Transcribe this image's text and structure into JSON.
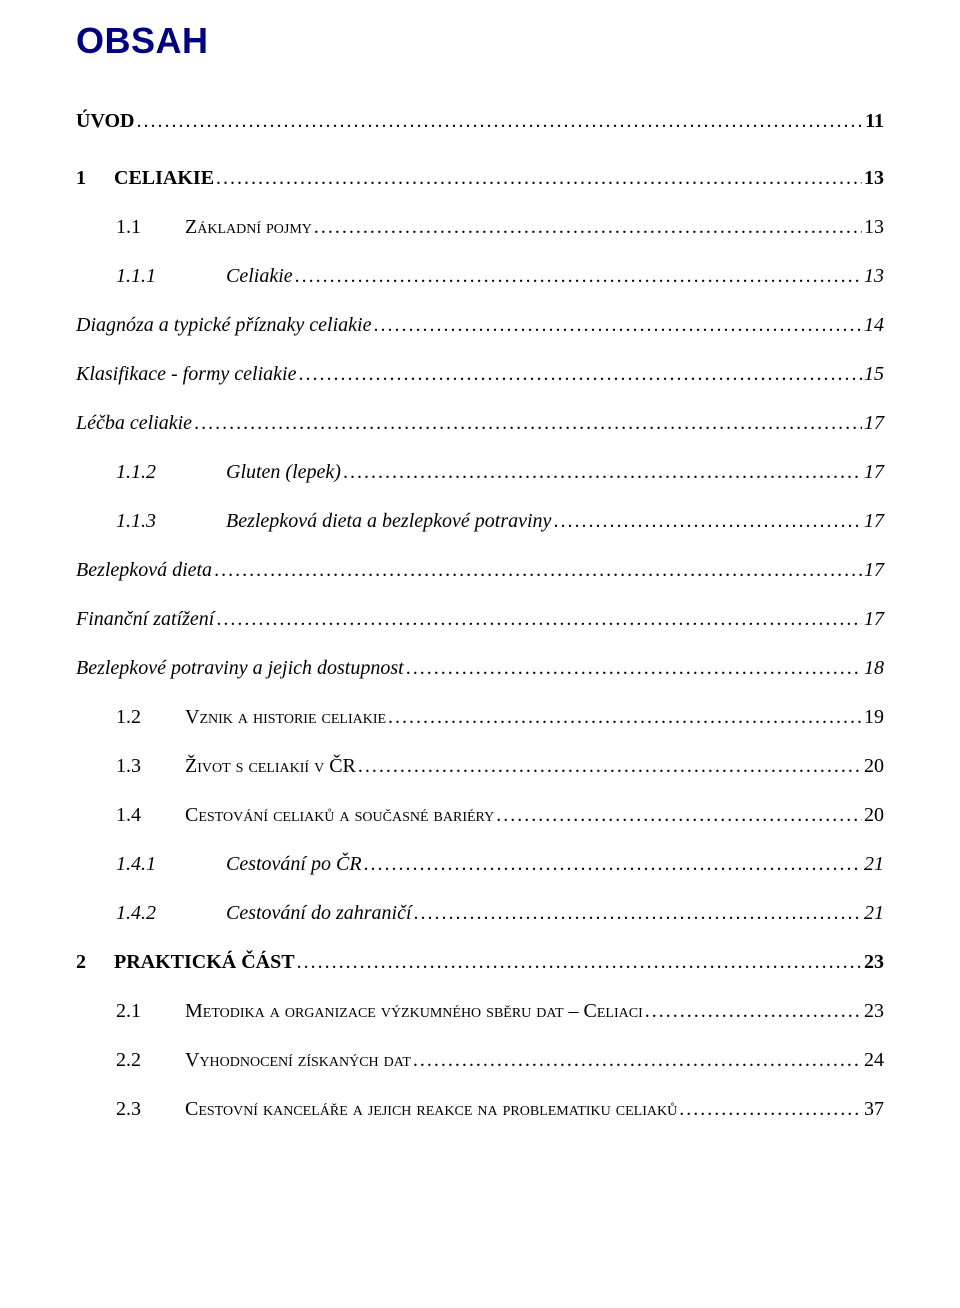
{
  "title": "OBSAH",
  "entries": [
    {
      "num": "",
      "gap": "0",
      "text": "ÚVOD",
      "page": "11",
      "bold": true,
      "italic": false,
      "sc": false,
      "indent": "lvl0",
      "extraspace": true
    },
    {
      "num": "1",
      "gap": "28",
      "text": "CELIAKIE",
      "page": "13",
      "bold": true,
      "italic": false,
      "sc": false,
      "indent": "lvl0",
      "extraspace": false
    },
    {
      "num": "1.1",
      "gap": "44",
      "text": "Základní pojmy",
      "page": "13",
      "bold": false,
      "italic": false,
      "sc": true,
      "indent": "lvl1",
      "extraspace": false
    },
    {
      "num": "1.1.1",
      "gap": "70",
      "text": "Celiakie",
      "page": "13",
      "bold": false,
      "italic": true,
      "sc": false,
      "indent": "lvl2",
      "extraspace": false
    },
    {
      "num": "",
      "gap": "0",
      "text": "Diagnóza a typické příznaky celiakie",
      "page": "14",
      "bold": false,
      "italic": true,
      "sc": false,
      "indent": "lvl-noind",
      "extraspace": false
    },
    {
      "num": "",
      "gap": "0",
      "text": "Klasifikace - formy celiakie",
      "page": "15",
      "bold": false,
      "italic": true,
      "sc": false,
      "indent": "lvl-noind",
      "extraspace": false
    },
    {
      "num": "",
      "gap": "0",
      "text": "Léčba celiakie",
      "page": "17",
      "bold": false,
      "italic": true,
      "sc": false,
      "indent": "lvl-noind",
      "extraspace": false
    },
    {
      "num": "1.1.2",
      "gap": "70",
      "text": "Gluten (lepek)",
      "page": "17",
      "bold": false,
      "italic": true,
      "sc": false,
      "indent": "lvl2",
      "extraspace": false
    },
    {
      "num": "1.1.3",
      "gap": "70",
      "text": "Bezlepková dieta a bezlepkové potraviny",
      "page": "17",
      "bold": false,
      "italic": true,
      "sc": false,
      "indent": "lvl2",
      "extraspace": false
    },
    {
      "num": "",
      "gap": "0",
      "text": "Bezlepková dieta",
      "page": "17",
      "bold": false,
      "italic": true,
      "sc": false,
      "indent": "lvl-noind",
      "extraspace": false
    },
    {
      "num": "",
      "gap": "0",
      "text": "Finanční zatížení",
      "page": "17",
      "bold": false,
      "italic": true,
      "sc": false,
      "indent": "lvl-noind",
      "extraspace": false
    },
    {
      "num": "",
      "gap": "0",
      "text": "Bezlepkové potraviny a jejich dostupnost",
      "page": "18",
      "bold": false,
      "italic": true,
      "sc": false,
      "indent": "lvl-noind",
      "extraspace": false
    },
    {
      "num": "1.2",
      "gap": "44",
      "text": "Vznik a historie celiakie",
      "page": "19",
      "bold": false,
      "italic": false,
      "sc": true,
      "indent": "lvl1",
      "extraspace": false
    },
    {
      "num": "1.3",
      "gap": "44",
      "text": "Život s celiakií v ČR",
      "page": "20",
      "bold": false,
      "italic": false,
      "sc": true,
      "indent": "lvl1",
      "extraspace": false
    },
    {
      "num": "1.4",
      "gap": "44",
      "text": "Cestování celiaků a současné bariéry",
      "page": "20",
      "bold": false,
      "italic": false,
      "sc": true,
      "indent": "lvl1",
      "extraspace": false
    },
    {
      "num": "1.4.1",
      "gap": "70",
      "text": "Cestování po ČR",
      "page": "21",
      "bold": false,
      "italic": true,
      "sc": false,
      "indent": "lvl2",
      "extraspace": false
    },
    {
      "num": "1.4.2",
      "gap": "70",
      "text": "Cestování do zahraničí",
      "page": "21",
      "bold": false,
      "italic": true,
      "sc": false,
      "indent": "lvl2",
      "extraspace": false
    },
    {
      "num": "2",
      "gap": "28",
      "text": "PRAKTICKÁ ČÁST",
      "page": "23",
      "bold": true,
      "italic": false,
      "sc": false,
      "indent": "lvl0",
      "extraspace": false
    },
    {
      "num": "2.1",
      "gap": "44",
      "text": "Metodika a organizace výzkumného sběru dat – Celiaci",
      "page": "23",
      "bold": false,
      "italic": false,
      "sc": true,
      "indent": "lvl1",
      "extraspace": false
    },
    {
      "num": "2.2",
      "gap": "44",
      "text": "Vyhodnocení získaných dat",
      "page": "24",
      "bold": false,
      "italic": false,
      "sc": true,
      "indent": "lvl1",
      "extraspace": false
    },
    {
      "num": "2.3",
      "gap": "44",
      "text": "Cestovní kanceláře a jejich reakce na problematiku celiaků",
      "page": "37",
      "bold": false,
      "italic": false,
      "sc": true,
      "indent": "lvl1",
      "extraspace": false
    }
  ]
}
